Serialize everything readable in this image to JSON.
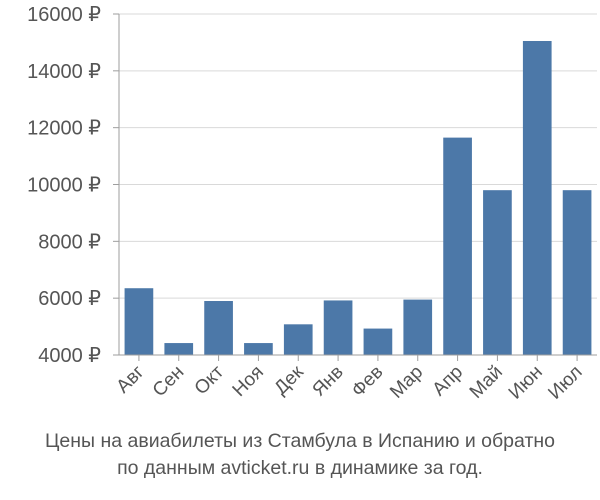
{
  "caption": {
    "line1": "Цены на авиабилеты из Стамбула в Испанию и обратно",
    "line2": "по данным avticket.ru в динамике за год."
  },
  "colors": {
    "bar": "#4c78a8",
    "axis": "#9e9e9e",
    "grid": "#d9d9d9",
    "text": "#555555"
  },
  "chart_data": {
    "type": "bar",
    "categories": [
      "Авг",
      "Сен",
      "Окт",
      "Ноя",
      "Дек",
      "Янв",
      "Фев",
      "Мар",
      "Апр",
      "Май",
      "Июн",
      "Июл"
    ],
    "values": [
      6350,
      4420,
      5900,
      4420,
      5080,
      5920,
      4930,
      5950,
      11650,
      9800,
      15050,
      9800
    ],
    "ylim": [
      4000,
      16000
    ],
    "yticks": [
      4000,
      6000,
      8000,
      10000,
      12000,
      14000,
      16000
    ],
    "ytick_labels": [
      "4000 ₽",
      "6000 ₽",
      "8000 ₽",
      "10000 ₽",
      "12000 ₽",
      "14000 ₽",
      "16000 ₽"
    ],
    "grid": true
  }
}
